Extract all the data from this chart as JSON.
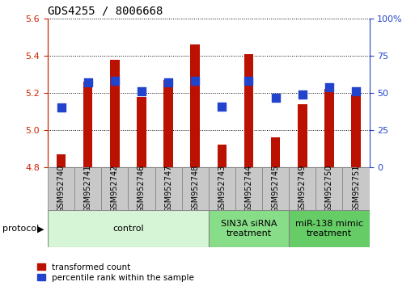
{
  "title": "GDS4255 / 8006668",
  "samples": [
    "GSM952740",
    "GSM952741",
    "GSM952742",
    "GSM952746",
    "GSM952747",
    "GSM952748",
    "GSM952743",
    "GSM952744",
    "GSM952745",
    "GSM952749",
    "GSM952750",
    "GSM952751"
  ],
  "transformed_count": [
    4.87,
    5.26,
    5.38,
    5.18,
    5.27,
    5.46,
    4.92,
    5.41,
    4.96,
    5.14,
    5.22,
    5.19
  ],
  "percentile_rank": [
    40,
    57,
    58,
    51,
    57,
    58,
    41,
    58,
    47,
    49,
    54,
    51
  ],
  "ylim_left": [
    4.8,
    5.6
  ],
  "ylim_right": [
    0,
    100
  ],
  "yticks_left": [
    4.8,
    5.0,
    5.2,
    5.4,
    5.6
  ],
  "yticks_right_vals": [
    0,
    25,
    50,
    75,
    100
  ],
  "yticks_right_labels": [
    "0",
    "25",
    "50",
    "75",
    "100%"
  ],
  "groups": [
    {
      "label": "control",
      "start": 0,
      "end": 6,
      "color": "#d6f5d6"
    },
    {
      "label": "SIN3A siRNA\ntreatment",
      "start": 6,
      "end": 9,
      "color": "#88dd88"
    },
    {
      "label": "miR-138 mimic\ntreatment",
      "start": 9,
      "end": 12,
      "color": "#66cc66"
    }
  ],
  "bar_color": "#bb1100",
  "dot_color": "#2244cc",
  "bar_width": 0.35,
  "dot_size": 45,
  "background_color": "#ffffff",
  "plot_bg": "#ffffff",
  "legend_red_label": "transformed count",
  "legend_blue_label": "percentile rank within the sample",
  "protocol_label": "protocol",
  "left_axis_color": "#cc2200",
  "right_axis_color": "#2244cc",
  "label_box_color": "#c8c8c8",
  "label_box_edge": "#888888",
  "spine_color": "#000000",
  "grid_color": "#000000",
  "title_fontsize": 10,
  "tick_fontsize": 8,
  "xlabel_fontsize": 7,
  "group_fontsize": 8
}
